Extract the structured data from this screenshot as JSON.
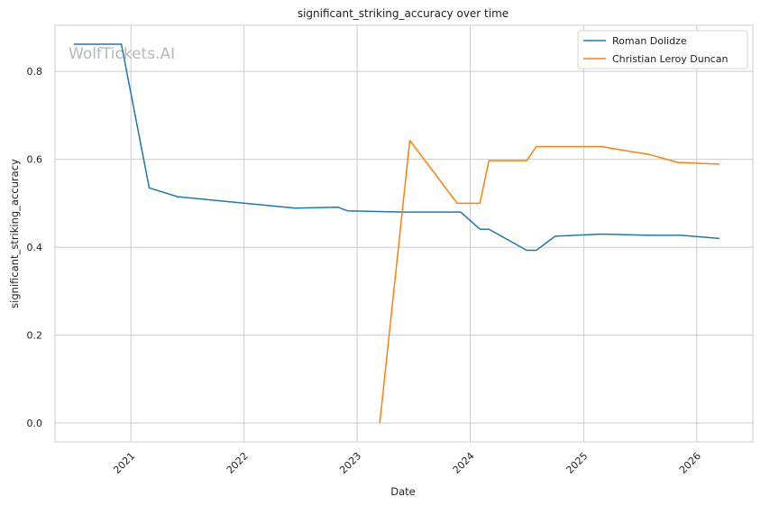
{
  "chart_data": {
    "type": "line",
    "title": "significant_striking_accuracy over time",
    "xlabel": "Date",
    "ylabel": "significant_striking_accuracy",
    "watermark": "WolfTickets.AI",
    "grid": true,
    "legend_position": "top-right",
    "xlim": [
      "2020-05-01",
      "2026-07-01"
    ],
    "ylim": [
      -0.043,
      0.905
    ],
    "x_ticks": [
      "2021",
      "2022",
      "2023",
      "2024",
      "2025",
      "2026"
    ],
    "y_ticks": [
      "0.0",
      "0.2",
      "0.4",
      "0.6",
      "0.8"
    ],
    "series": [
      {
        "name": "Roman Dolidze",
        "color": "#1f77b4",
        "points": [
          [
            "2020-07-01",
            0.862
          ],
          [
            "2020-12-01",
            0.862
          ],
          [
            "2021-03-01",
            0.535
          ],
          [
            "2021-06-01",
            0.515
          ],
          [
            "2022-06-15",
            0.489
          ],
          [
            "2022-11-01",
            0.491
          ],
          [
            "2022-12-01",
            0.483
          ],
          [
            "2023-06-01",
            0.48
          ],
          [
            "2023-12-01",
            0.48
          ],
          [
            "2024-02-01",
            0.441
          ],
          [
            "2024-03-01",
            0.441
          ],
          [
            "2024-07-01",
            0.393
          ],
          [
            "2024-08-01",
            0.393
          ],
          [
            "2024-10-01",
            0.425
          ],
          [
            "2025-03-01",
            0.43
          ],
          [
            "2025-08-01",
            0.427
          ],
          [
            "2025-11-15",
            0.427
          ],
          [
            "2026-03-15",
            0.42
          ]
        ]
      },
      {
        "name": "Christian Leroy Duncan",
        "color": "#ff7f0e",
        "points": [
          [
            "2023-03-15",
            0.0
          ],
          [
            "2023-06-20",
            0.643
          ],
          [
            "2023-11-20",
            0.5
          ],
          [
            "2024-02-01",
            0.5
          ],
          [
            "2024-03-01",
            0.597
          ],
          [
            "2024-07-01",
            0.597
          ],
          [
            "2024-08-01",
            0.629
          ],
          [
            "2025-03-01",
            0.629
          ],
          [
            "2025-04-01",
            0.625
          ],
          [
            "2025-08-01",
            0.611
          ],
          [
            "2025-11-01",
            0.593
          ],
          [
            "2026-03-15",
            0.589
          ]
        ]
      }
    ]
  }
}
